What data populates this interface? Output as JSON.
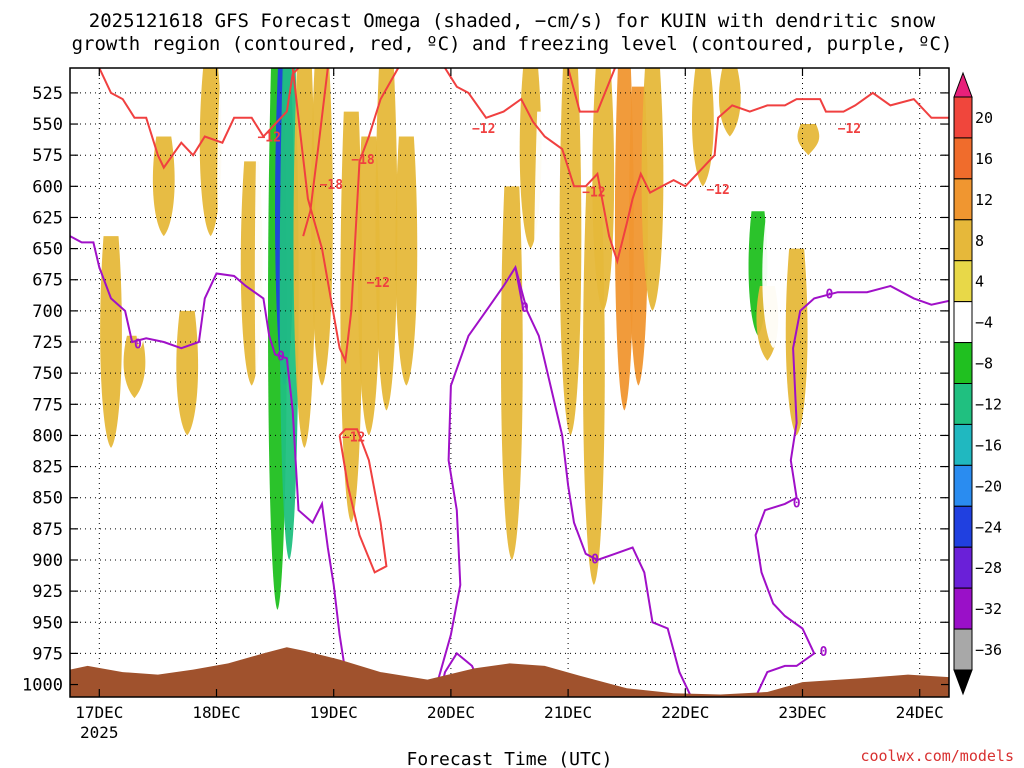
{
  "page": {
    "title_line1": "2025121618 GFS Forecast Omega (shaded, −cm/s) for KUIN with dendritic snow",
    "title_line2": "growth region (contoured, red, ºC) and freezing level (contoured, purple, ºC)",
    "credit": "coolwx.com/models"
  },
  "chart_data": {
    "type": "heatmap",
    "xlabel": "Forecast Time (UTC)",
    "x_ticks": [
      "17DEC",
      "18DEC",
      "19DEC",
      "20DEC",
      "21DEC",
      "22DEC",
      "23DEC",
      "24DEC"
    ],
    "x_year_label": "2025",
    "x_range_days": [
      16.75,
      24.25
    ],
    "y_axis": "pressure (hPa)",
    "y_ticks": [
      525,
      550,
      575,
      600,
      625,
      650,
      675,
      700,
      725,
      750,
      775,
      800,
      825,
      850,
      875,
      900,
      925,
      950,
      975,
      1000
    ],
    "y_range": [
      505,
      1010
    ],
    "grid": "dotted",
    "colorbar": {
      "labels": [
        "20",
        "16",
        "12",
        "8",
        "4",
        "−4",
        "−8",
        "−12",
        "−16",
        "−20",
        "−24",
        "−28",
        "−32",
        "−36"
      ],
      "colors": [
        "#e8207a",
        "#f0463c",
        "#f06c2c",
        "#f09630",
        "#e6b83a",
        "#e8d848",
        "#ffffff",
        "#20c020",
        "#20c080",
        "#20b8c0",
        "#2a8cf0",
        "#2040e0",
        "#6a20d8",
        "#9a10c8",
        "#a8a8a8",
        "#000000"
      ]
    },
    "shaded_omega": [
      {
        "day": 17.1,
        "p0": 640,
        "p1": 810,
        "value": 5
      },
      {
        "day": 17.3,
        "p0": 720,
        "p1": 770,
        "value": 5
      },
      {
        "day": 17.35,
        "p0": 505,
        "p1": 730,
        "value": -6
      },
      {
        "day": 17.55,
        "p0": 560,
        "p1": 640,
        "value": 5
      },
      {
        "day": 17.75,
        "p0": 700,
        "p1": 800,
        "value": 5
      },
      {
        "day": 17.95,
        "p0": 505,
        "p1": 640,
        "value": 5
      },
      {
        "day": 18.1,
        "p0": 505,
        "p1": 700,
        "value": -6
      },
      {
        "day": 18.22,
        "p0": 540,
        "p1": 650,
        "value": -6
      },
      {
        "day": 18.3,
        "p0": 580,
        "p1": 760,
        "value": 5
      },
      {
        "day": 18.42,
        "p0": 505,
        "p1": 880,
        "value": -6
      },
      {
        "day": 18.52,
        "p0": 505,
        "p1": 940,
        "value": -10
      },
      {
        "day": 18.58,
        "p0": 505,
        "p1": 760,
        "value": -26
      },
      {
        "day": 18.62,
        "p0": 505,
        "p1": 900,
        "value": -14
      },
      {
        "day": 18.75,
        "p0": 505,
        "p1": 810,
        "value": 5
      },
      {
        "day": 18.9,
        "p0": 505,
        "p1": 760,
        "value": 5
      },
      {
        "day": 19.15,
        "p0": 540,
        "p1": 870,
        "value": 5
      },
      {
        "day": 19.3,
        "p0": 560,
        "p1": 800,
        "value": 5
      },
      {
        "day": 19.45,
        "p0": 505,
        "p1": 780,
        "value": 6
      },
      {
        "day": 19.62,
        "p0": 560,
        "p1": 760,
        "value": 5
      },
      {
        "day": 20.18,
        "p0": 700,
        "p1": 820,
        "value": -6
      },
      {
        "day": 20.4,
        "p0": 505,
        "p1": 680,
        "value": -6
      },
      {
        "day": 20.52,
        "p0": 600,
        "p1": 900,
        "value": 5
      },
      {
        "day": 20.68,
        "p0": 505,
        "p1": 650,
        "value": 5
      },
      {
        "day": 20.8,
        "p0": 540,
        "p1": 900,
        "value": -6
      },
      {
        "day": 21.02,
        "p0": 505,
        "p1": 800,
        "value": 5
      },
      {
        "day": 21.22,
        "p0": 600,
        "p1": 920,
        "value": 5
      },
      {
        "day": 21.3,
        "p0": 505,
        "p1": 700,
        "value": 6
      },
      {
        "day": 21.48,
        "p0": 505,
        "p1": 780,
        "value": 10
      },
      {
        "day": 21.6,
        "p0": 520,
        "p1": 760,
        "value": 9
      },
      {
        "day": 21.72,
        "p0": 505,
        "p1": 700,
        "value": 5
      },
      {
        "day": 21.98,
        "p0": 505,
        "p1": 600,
        "value": -6
      },
      {
        "day": 22.15,
        "p0": 505,
        "p1": 600,
        "value": 5
      },
      {
        "day": 22.38,
        "p0": 505,
        "p1": 560,
        "value": 5
      },
      {
        "day": 22.52,
        "p0": 615,
        "p1": 700,
        "value": -6
      },
      {
        "day": 22.62,
        "p0": 620,
        "p1": 720,
        "value": -10
      },
      {
        "day": 22.7,
        "p0": 680,
        "p1": 740,
        "value": 5
      },
      {
        "day": 22.75,
        "p0": 625,
        "p1": 730,
        "value": -6
      },
      {
        "day": 22.88,
        "p0": 800,
        "p1": 850,
        "value": -6
      },
      {
        "day": 22.95,
        "p0": 650,
        "p1": 800,
        "value": 5
      },
      {
        "day": 23.05,
        "p0": 550,
        "p1": 575,
        "value": 5
      },
      {
        "day": 23.55,
        "p0": 760,
        "p1": 800,
        "value": -6
      }
    ],
    "contours_snow_growth_red": [
      {
        "label": "−12",
        "day": 18.45,
        "p": 560
      },
      {
        "label": "−12",
        "day": 20.28,
        "p": 553
      },
      {
        "label": "−18",
        "day": 18.98,
        "p": 598
      },
      {
        "label": "−18",
        "day": 19.25,
        "p": 578
      },
      {
        "label": "−12",
        "day": 19.38,
        "p": 677
      },
      {
        "label": "−12",
        "day": 19.17,
        "p": 801
      },
      {
        "label": "−12",
        "day": 21.22,
        "p": 604
      },
      {
        "label": "−12",
        "day": 22.28,
        "p": 602
      },
      {
        "label": "−12",
        "day": 23.4,
        "p": 553
      }
    ],
    "contours_freezing_purple": [
      {
        "label": "0",
        "day": 17.33,
        "p": 726
      },
      {
        "label": "0",
        "day": 18.55,
        "p": 736
      },
      {
        "label": "0",
        "day": 20.63,
        "p": 697
      },
      {
        "label": "0",
        "day": 21.23,
        "p": 899
      },
      {
        "label": "0",
        "day": 22.95,
        "p": 854
      },
      {
        "label": "0",
        "day": 23.18,
        "p": 973
      },
      {
        "label": "0",
        "day": 23.23,
        "p": 686
      }
    ]
  }
}
